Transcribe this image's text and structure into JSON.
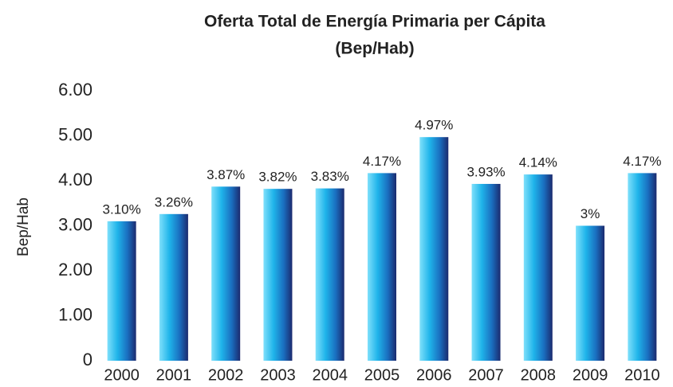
{
  "chart_data": {
    "type": "bar",
    "title": "Oferta Total de Energía Primaria per Cápita",
    "subtitle": "(Bep/Hab)",
    "y_label": "Bep/Hab",
    "categories": [
      "2000",
      "2001",
      "2002",
      "2003",
      "2004",
      "2005",
      "2006",
      "2007",
      "2008",
      "2009",
      "2010"
    ],
    "values": [
      3.1,
      3.26,
      3.87,
      3.82,
      3.83,
      4.17,
      4.97,
      3.93,
      4.14,
      3,
      4.17
    ],
    "value_labels": [
      "3.10%",
      "3.26%",
      "3.87%",
      "3.82%",
      "3.83%",
      "4.17%",
      "4.97%",
      "3.93%",
      "4.14%",
      "3%",
      "4.17%"
    ],
    "ylim": [
      0,
      6
    ],
    "yticks": [
      0,
      {
        "value": 1,
        "label": "1.00"
      },
      {
        "value": 2,
        "label": "2.00"
      },
      {
        "value": 3,
        "label": "3.00"
      },
      {
        "value": 4,
        "label": "4.00"
      },
      {
        "value": 5,
        "label": "5.00"
      },
      {
        "value": 6,
        "label": "6.00"
      }
    ],
    "grid": true
  }
}
